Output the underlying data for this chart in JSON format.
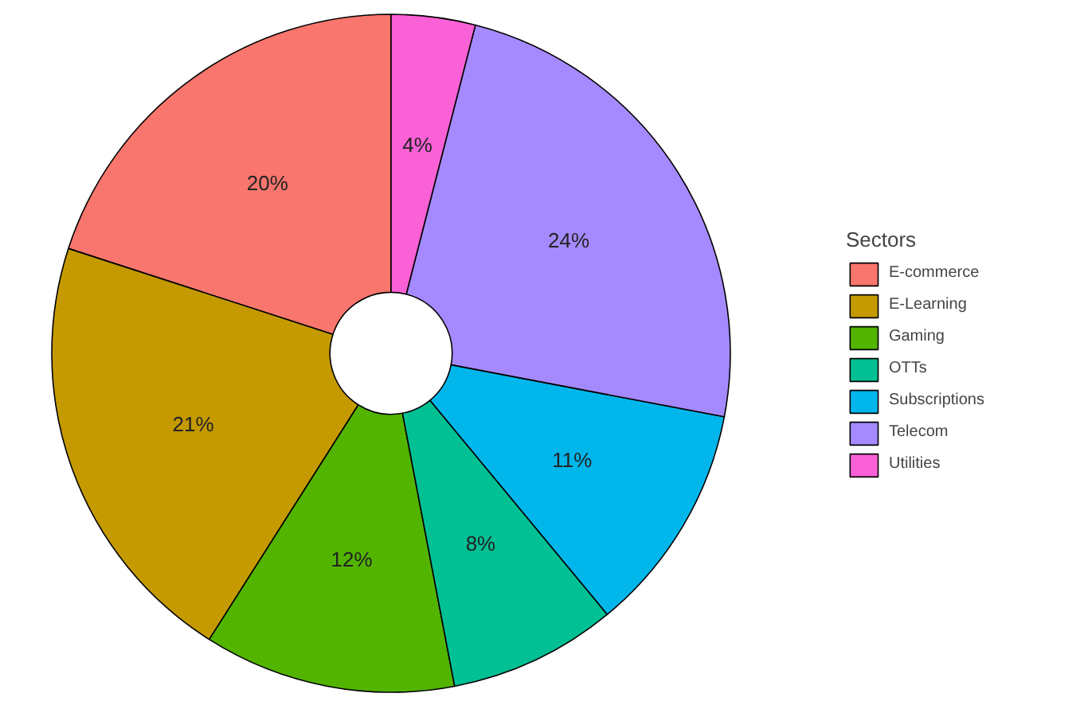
{
  "chart_data": {
    "type": "donut",
    "legend_title": "Sectors",
    "legend": "right",
    "categories": [
      "E-commerce",
      "E-Learning",
      "Gaming",
      "OTTs",
      "Subscriptions",
      "Telecom",
      "Utilities"
    ],
    "values": [
      20,
      21,
      12,
      8,
      11,
      24,
      4
    ],
    "value_labels": [
      "20%",
      "21%",
      "12%",
      "8%",
      "11%",
      "24%",
      "4%"
    ],
    "colors": [
      "#f8766d",
      "#c49a00",
      "#53b400",
      "#00c094",
      "#00b6eb",
      "#a58aff",
      "#fb61d7"
    ]
  }
}
